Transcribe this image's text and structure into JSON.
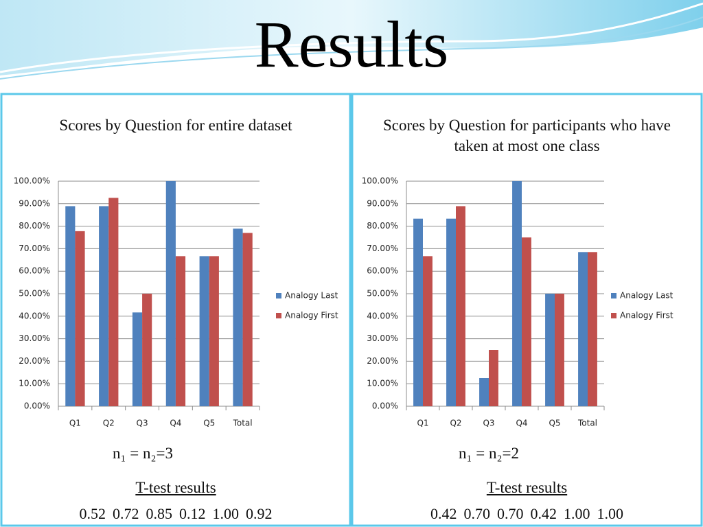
{
  "slide": {
    "title": "Results",
    "panels": [
      {
        "n_label": "n₁ = n₂=3",
        "ttest_heading": "T-test results",
        "ttest_values": [
          "0.52",
          "0.72",
          "0.85",
          "0.12",
          "1.00",
          "0.92"
        ]
      },
      {
        "n_label": "n₁ = n₂=2",
        "ttest_heading": "T-test results",
        "ttest_values": [
          "0.42",
          "0.70",
          "0.70",
          "0.42",
          "1.00",
          "1.00"
        ]
      }
    ]
  },
  "chart_data": [
    {
      "type": "bar",
      "title": "Scores by Question for entire dataset",
      "categories": [
        "Q1",
        "Q2",
        "Q3",
        "Q4",
        "Q5",
        "Total"
      ],
      "series": [
        {
          "name": "Analogy Last",
          "color": "#4f81bd",
          "values": [
            88.89,
            88.89,
            41.67,
            100,
            66.67,
            78.9
          ]
        },
        {
          "name": "Analogy First",
          "color": "#c0504d",
          "values": [
            77.78,
            92.59,
            50,
            66.67,
            66.67,
            77
          ]
        }
      ],
      "ylim": [
        0,
        100
      ],
      "yticks": [
        {
          "value": 0,
          "label": "0.00%"
        },
        {
          "value": 10,
          "label": "10.00%"
        },
        {
          "value": 20,
          "label": "20.00%"
        },
        {
          "value": 30,
          "label": "30.00%"
        },
        {
          "value": 40,
          "label": "40.00%"
        },
        {
          "value": 50,
          "label": "50.00%"
        },
        {
          "value": 60,
          "label": "60.00%"
        },
        {
          "value": 70,
          "label": "70.00%"
        },
        {
          "value": 80,
          "label": "80.00%"
        },
        {
          "value": 90,
          "label": "90.00%"
        },
        {
          "value": 100,
          "label": "100.00%"
        }
      ],
      "grid": true,
      "legend": "right"
    },
    {
      "type": "bar",
      "title": "Scores by Question for participants who have taken at most one class",
      "categories": [
        "Q1",
        "Q2",
        "Q3",
        "Q4",
        "Q5",
        "Total"
      ],
      "series": [
        {
          "name": "Analogy Last",
          "color": "#4f81bd",
          "values": [
            83.33,
            83.33,
            12.5,
            100,
            50,
            68.5
          ]
        },
        {
          "name": "Analogy First",
          "color": "#c0504d",
          "values": [
            66.67,
            88.89,
            25,
            75,
            50,
            68.5
          ]
        }
      ],
      "ylim": [
        0,
        100
      ],
      "yticks": [
        {
          "value": 0,
          "label": "0.00%"
        },
        {
          "value": 10,
          "label": "10.00%"
        },
        {
          "value": 20,
          "label": "20.00%"
        },
        {
          "value": 30,
          "label": "30.00%"
        },
        {
          "value": 40,
          "label": "40.00%"
        },
        {
          "value": 50,
          "label": "50.00%"
        },
        {
          "value": 60,
          "label": "60.00%"
        },
        {
          "value": 70,
          "label": "70.00%"
        },
        {
          "value": 80,
          "label": "80.00%"
        },
        {
          "value": 90,
          "label": "90.00%"
        },
        {
          "value": 100,
          "label": "100.00%"
        }
      ],
      "grid": true,
      "legend": "right"
    }
  ]
}
